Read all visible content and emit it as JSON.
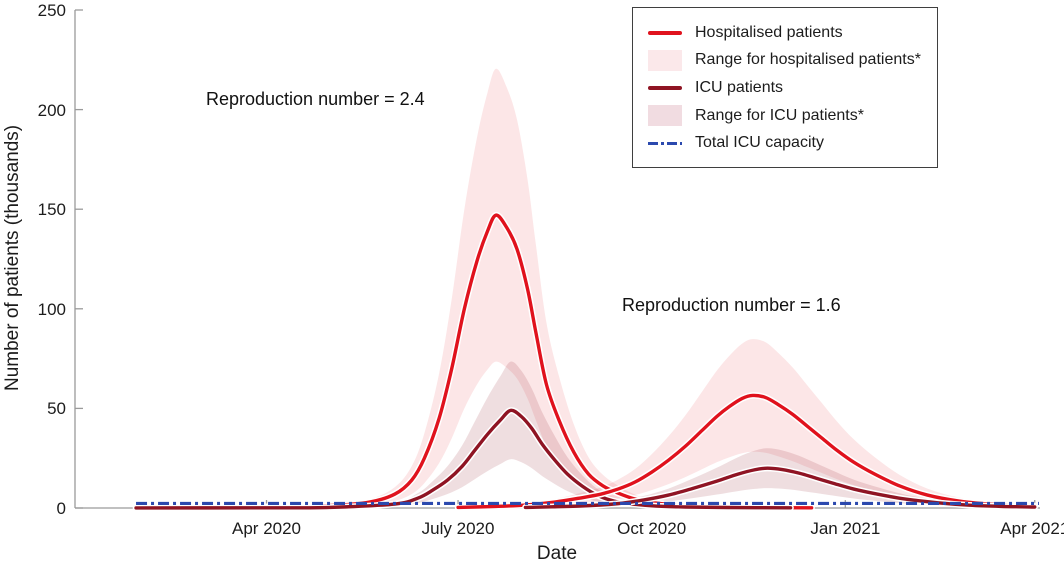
{
  "accent_colors": {
    "hospitalised_line": "#e0121d",
    "icu_line": "#8f1423",
    "capacity_line": "#2b49ae",
    "hosp_band_fill": "#e0121d",
    "icu_band_fill": "#8f1423",
    "axis_gray": "#9a9a9a",
    "legend_hosp_band_swatch": "#fbe8ea",
    "legend_icu_band_swatch": "#f1dce1"
  },
  "chart_data": {
    "type": "line",
    "title": "",
    "xlabel": "Date",
    "ylabel": "Number of patients (thousands)",
    "ylim": [
      0,
      250
    ],
    "xlim": [
      0,
      458.5
    ],
    "x_unit": "days since 2020-01-01",
    "grid": false,
    "legend_position": "top-right",
    "y_ticks": [
      {
        "value": 0,
        "label": "0"
      },
      {
        "value": 50,
        "label": "50"
      },
      {
        "value": 100,
        "label": "100"
      },
      {
        "value": 150,
        "label": "150"
      },
      {
        "value": 200,
        "label": "200"
      },
      {
        "value": 250,
        "label": "250"
      }
    ],
    "x_ticks": [
      {
        "day": 91,
        "label": "Apr 2020"
      },
      {
        "day": 182,
        "label": "July 2020"
      },
      {
        "day": 274,
        "label": "Oct 2020"
      },
      {
        "day": 366,
        "label": "Jan 2021"
      },
      {
        "day": 456,
        "label": "Apr 2021"
      }
    ],
    "annotations": [
      {
        "text": "Reproduction number = 2.4",
        "near": "first wave peak (July 2020, ~220k band top)"
      },
      {
        "text": "Reproduction number = 1.6",
        "near": "second wave peak (Nov 2020, ~85k band top)"
      }
    ],
    "series": [
      {
        "id": "hosp_r24",
        "name": "Hospitalised patients",
        "scenario": "Reproduction number = 2.4",
        "color": "#e0121d",
        "style": "solid",
        "peak": {
          "day": 200,
          "value": 147
        },
        "points": [
          [
            29,
            0.15
          ],
          [
            60,
            0.3
          ],
          [
            91,
            0.6
          ],
          [
            121,
            1.2
          ],
          [
            140,
            3
          ],
          [
            152,
            7
          ],
          [
            160,
            14
          ],
          [
            166,
            25
          ],
          [
            173,
            45
          ],
          [
            179,
            70
          ],
          [
            185,
            100
          ],
          [
            191,
            124
          ],
          [
            196,
            139
          ],
          [
            200,
            147
          ],
          [
            205,
            141
          ],
          [
            210,
            130
          ],
          [
            215,
            110
          ],
          [
            219,
            88
          ],
          [
            224,
            62
          ],
          [
            230,
            44
          ],
          [
            237,
            28
          ],
          [
            244,
            17
          ],
          [
            251,
            11
          ],
          [
            258,
            7.5
          ],
          [
            266,
            4.5
          ],
          [
            274,
            2.8
          ],
          [
            285,
            1.5
          ],
          [
            300,
            0.6
          ],
          [
            320,
            0.25
          ],
          [
            350,
            0.1
          ]
        ]
      },
      {
        "id": "icu_r24",
        "name": "ICU patients",
        "scenario": "Reproduction number = 2.4",
        "color": "#8f1423",
        "style": "solid",
        "peak": {
          "day": 207,
          "value": 49
        },
        "points": [
          [
            29,
            0.05
          ],
          [
            91,
            0.1
          ],
          [
            121,
            0.3
          ],
          [
            152,
            2
          ],
          [
            163,
            5
          ],
          [
            170,
            9
          ],
          [
            177,
            14
          ],
          [
            184,
            21
          ],
          [
            190,
            29
          ],
          [
            196,
            37
          ],
          [
            202,
            44
          ],
          [
            207,
            49
          ],
          [
            212,
            46
          ],
          [
            217,
            40
          ],
          [
            222,
            32
          ],
          [
            228,
            24
          ],
          [
            234,
            17
          ],
          [
            241,
            11
          ],
          [
            248,
            6.5
          ],
          [
            256,
            3.5
          ],
          [
            265,
            2
          ],
          [
            276,
            1
          ],
          [
            290,
            0.5
          ],
          [
            310,
            0.25
          ],
          [
            340,
            0.1
          ]
        ]
      },
      {
        "id": "hosp_r16",
        "name": "Hospitalised patients",
        "scenario": "Reproduction number = 1.6",
        "color": "#e0121d",
        "style": "solid",
        "peak": {
          "day": 322,
          "value": 57
        },
        "points": [
          [
            182,
            0.3
          ],
          [
            200,
            0.8
          ],
          [
            214,
            1.5
          ],
          [
            228,
            3
          ],
          [
            240,
            5
          ],
          [
            250,
            7
          ],
          [
            258,
            9.5
          ],
          [
            266,
            13
          ],
          [
            274,
            18
          ],
          [
            282,
            24
          ],
          [
            290,
            31
          ],
          [
            298,
            39
          ],
          [
            305,
            46
          ],
          [
            311,
            51
          ],
          [
            317,
            55
          ],
          [
            322,
            56.5
          ],
          [
            328,
            55.5
          ],
          [
            334,
            52
          ],
          [
            341,
            47
          ],
          [
            348,
            41
          ],
          [
            355,
            35
          ],
          [
            362,
            29
          ],
          [
            370,
            23
          ],
          [
            380,
            17
          ],
          [
            392,
            11
          ],
          [
            405,
            6.5
          ],
          [
            420,
            3.5
          ],
          [
            437,
            1.8
          ],
          [
            456,
            1
          ]
        ]
      },
      {
        "id": "icu_r16",
        "name": "ICU patients",
        "scenario": "Reproduction number = 1.6",
        "color": "#8f1423",
        "style": "solid",
        "peak": {
          "day": 329,
          "value": 20
        },
        "points": [
          [
            214,
            0.3
          ],
          [
            240,
            1
          ],
          [
            258,
            2.2
          ],
          [
            270,
            4
          ],
          [
            282,
            6.5
          ],
          [
            294,
            10
          ],
          [
            305,
            13.5
          ],
          [
            315,
            17
          ],
          [
            323,
            19.2
          ],
          [
            329,
            20
          ],
          [
            336,
            19.3
          ],
          [
            344,
            17.5
          ],
          [
            352,
            15
          ],
          [
            360,
            12.5
          ],
          [
            370,
            9.5
          ],
          [
            382,
            6.8
          ],
          [
            395,
            4.4
          ],
          [
            410,
            2.6
          ],
          [
            425,
            1.4
          ],
          [
            440,
            0.8
          ],
          [
            456,
            0.5
          ]
        ]
      },
      {
        "id": "icu_capacity",
        "name": "Total ICU capacity",
        "color": "#2b49ae",
        "style": "dash-dot",
        "points": [
          [
            29,
            2.3
          ],
          [
            458,
            2.3
          ]
        ]
      }
    ],
    "bands": [
      {
        "name": "Range for hospitalised patients*",
        "base": "hosp_r24",
        "lower_factor": 0.5,
        "upper_factor": 1.5,
        "color": "#e0121d",
        "opacity": 0.105,
        "peak_upper": 220
      },
      {
        "name": "Range for hospitalised patients*",
        "base": "hosp_r16",
        "lower_factor": 0.5,
        "upper_factor": 1.5,
        "color": "#e0121d",
        "opacity": 0.105,
        "peak_upper": 85
      },
      {
        "name": "Range for ICU patients*",
        "base": "icu_r24",
        "lower_factor": 0.5,
        "upper_factor": 1.5,
        "color": "#8f1423",
        "opacity": 0.14,
        "peak_upper": 73
      },
      {
        "name": "Range for ICU patients*",
        "base": "icu_r16",
        "lower_factor": 0.5,
        "upper_factor": 1.5,
        "color": "#8f1423",
        "opacity": 0.14,
        "peak_upper": 30
      }
    ],
    "legend": [
      {
        "type": "line",
        "color": "#e0121d",
        "label": "Hospitalised patients"
      },
      {
        "type": "fill",
        "color": "#fbe8ea",
        "label": "Range for hospitalised patients*"
      },
      {
        "type": "line",
        "color": "#8f1423",
        "label": "ICU patients"
      },
      {
        "type": "fill",
        "color": "#f1dce1",
        "label": "Range for ICU patients*"
      },
      {
        "type": "dashdot",
        "color": "#2b49ae",
        "label": "Total ICU capacity"
      }
    ]
  }
}
